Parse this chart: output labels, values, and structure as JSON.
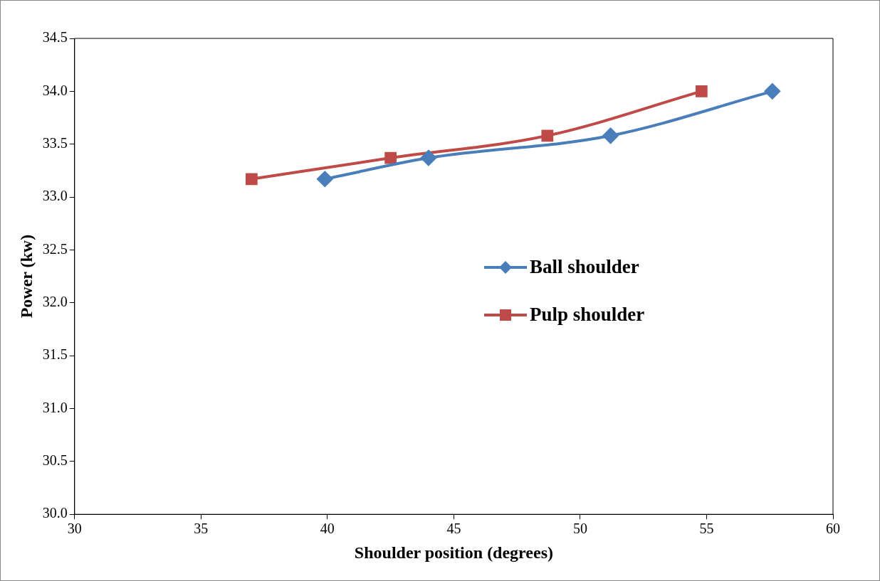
{
  "chart_data": {
    "type": "line",
    "xlabel": "Shoulder position (degrees)",
    "ylabel": "Power (kw)",
    "xlim": [
      30,
      60
    ],
    "xticks": [
      30,
      35,
      40,
      45,
      50,
      55,
      60
    ],
    "ylim": [
      30,
      34.5
    ],
    "yticks": [
      {
        "value": 30,
        "label": "30.0"
      },
      {
        "value": 30.5,
        "label": "30.5"
      },
      {
        "value": 31,
        "label": "31.0"
      },
      {
        "value": 31.5,
        "label": "31.5"
      },
      {
        "value": 32,
        "label": "32.0"
      },
      {
        "value": 32.5,
        "label": "32.5"
      },
      {
        "value": 33,
        "label": "33.0"
      },
      {
        "value": 33.5,
        "label": "33.5"
      },
      {
        "value": 34,
        "label": "34.0"
      },
      {
        "value": 34.5,
        "label": "34.5"
      }
    ],
    "grid": false,
    "legend": "right",
    "series": [
      {
        "name": "Ball shoulder",
        "color": "#4a7ebb",
        "marker": "diamond",
        "x": [
          39.9,
          44.0,
          51.2,
          57.6
        ],
        "values": [
          33.17,
          33.37,
          33.58,
          34.0
        ]
      },
      {
        "name": "Pulp shoulder",
        "color": "#be4b48",
        "marker": "square",
        "x": [
          37.0,
          42.5,
          48.7,
          54.8
        ],
        "values": [
          33.17,
          33.37,
          33.58,
          34.0
        ]
      }
    ]
  }
}
